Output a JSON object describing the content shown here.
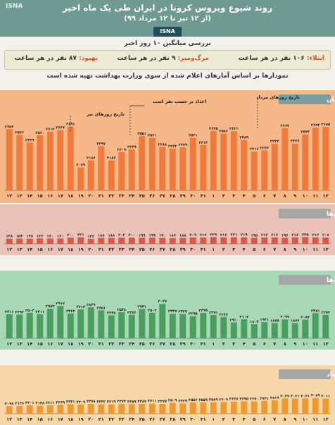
{
  "header": {
    "logo": "ISNA",
    "title": "روند شیوع ویروس کرونا در ایران طی یک ماه اخیر",
    "subtitle": "(از ۱۲ تیر تا ۱۲ مرداد ۹۹)",
    "badge": "ISNA"
  },
  "summary": {
    "heading": "بررسی میانگین ۱۰ روز اخیر",
    "items": [
      {
        "label": "ابتلاء:",
        "value": "۱۰۶ نفر در هر ساعت"
      },
      {
        "label": "مرگ‌ومیر:",
        "value": "۹ نفر در هر ساعت"
      },
      {
        "label": "بهبود:",
        "value": "۸۷ نفر در هر ساعت"
      }
    ]
  },
  "note": "نمودارها بر اساس آمارهای اعلام شده از سوی وزارت بهداشت تهیه شده است",
  "annotations": {
    "tir_dates": "تاریخ روزهای تیر",
    "mordad_dates": "تاریخ روزهای مرداد",
    "corrected": "اعداد بر حسب نفر است"
  },
  "colors": {
    "infections_bg": "#f6b889",
    "infections_bar": "#f07a3c",
    "infections_tag": "#7a9ea2",
    "deaths_bg": "#ebc2b8",
    "deaths_bar": "#d45a4a",
    "deaths_tag": "#a7a7a7",
    "recovered_bg": "#a9d8b6",
    "recovered_bar": "#4a9f5e",
    "recovered_tag": "#a7a7a7",
    "severe_bg": "#f7d7a8",
    "severe_bar": "#ef9a2e",
    "severe_tag": "#a7a7a7"
  },
  "chart_data": [
    {
      "type": "bar",
      "title": "مبتلایان",
      "categories": [
        "۱۲",
        "۱۳",
        "۱۴",
        "۱۵",
        "۱۶",
        "۱۷",
        "۱۸",
        "۱۹",
        "۲۰",
        "۲۱",
        "۲۲",
        "۲۳",
        "۲۴",
        "۲۵",
        "۲۶",
        "۲۷",
        "۲۸",
        "۲۹",
        "۳۰",
        "۳۱",
        "۱",
        "۲",
        "۳",
        "۴",
        "۵",
        "۶",
        "۷",
        "۸",
        "۹",
        "۱۰",
        "۱۱",
        "۱۲"
      ],
      "values": [
        2652,
        2566,
        2449,
        2560,
        2613,
        2637,
        2691,
        2079,
        2186,
        2397,
        2186,
        2309,
        2349,
        2551,
        2521,
        2388,
        2362,
        2379,
        2521,
        2414,
        2625,
        2586,
        2621,
        2489,
        2316,
        2333,
        2434,
        2667,
        2436,
        2574,
        2674,
        2685
      ],
      "value_labels": [
        "۲۶۵۲",
        "۲۵۶۶",
        "۲۴۴۹",
        "۲۵۶۰",
        "۲۶۱۳",
        "۲۶۳۷",
        "۲۶۹۱",
        "۲۰۷۹",
        "۲۱۸۶",
        "۲۳۹۷",
        "۲۱۸۶",
        "۲۳۰۹",
        "۲۳۴۹",
        "۲۵۵۱",
        "۲۵۲۱",
        "۲۳۸۸",
        "۲۳۶۲",
        "۲۳۷۹",
        "۲۵۲۱",
        "۲۴۱۴",
        "۲۶۲۵",
        "۲۵۸۶",
        "۲۶۲۱",
        "۲۴۸۹",
        "۲۳۱۶",
        "۲۳۳۳",
        "۲۴۳۴",
        "۲۶۶۷",
        "۲۴۳۶",
        "۲۵۷۴",
        "۲۶۷۴",
        "۲۶۸۵"
      ]
    },
    {
      "type": "bar",
      "title": "فوتی‌ها",
      "categories": [
        "۱۲",
        "۱۳",
        "۱۴",
        "۱۵",
        "۱۶",
        "۱۷",
        "۱۸",
        "۱۹",
        "۲۰",
        "۲۱",
        "۲۲",
        "۲۳",
        "۲۴",
        "۲۵",
        "۲۶",
        "۲۷",
        "۲۸",
        "۲۹",
        "۳۰",
        "۳۱",
        "۱",
        "۲",
        "۳",
        "۴",
        "۵",
        "۶",
        "۷",
        "۸",
        "۹",
        "۱۰",
        "۱۱",
        "۱۲"
      ],
      "values": [
        148,
        154,
        148,
        163,
        160,
        160,
        200,
        221,
        142,
        188,
        188,
        203,
        200,
        199,
        199,
        190,
        183,
        188,
        209,
        212,
        229,
        216,
        221,
        219,
        195,
        212,
        216,
        196,
        216,
        235,
        212,
        208
      ],
      "value_labels": [
        "۱۴۸",
        "۱۵۴",
        "۱۴۸",
        "۱۶۳",
        "۱۶۰",
        "۱۶۰",
        "۲۰۰",
        "۲۲۱",
        "۱۴۲",
        "۱۸۸",
        "۱۸۸",
        "۲۰۳",
        "۲۰۰",
        "۱۹۹",
        "۱۹۹",
        "۱۹۰",
        "۱۸۳",
        "۱۸۸",
        "۲۰۹",
        "۲۱۲",
        "۲۲۹",
        "۲۱۶",
        "۲۲۱",
        "۲۱۹",
        "۱۹۵",
        "۲۱۲",
        "۲۱۶",
        "۱۹۶",
        "۲۱۶",
        "۲۳۵",
        "۲۱۲",
        "۲۰۸"
      ]
    },
    {
      "type": "bar",
      "title": "بهبودیافته‌ها",
      "categories": [
        "۱۲",
        "۱۳",
        "۱۴",
        "۱۵",
        "۱۶",
        "۱۷",
        "۱۸",
        "۱۹",
        "۲۰",
        "۲۱",
        "۲۲",
        "۲۳",
        "۲۴",
        "۲۵",
        "۲۶",
        "۲۷",
        "۲۸",
        "۲۹",
        "۳۰",
        "۳۱",
        "۱",
        "۲",
        "۳",
        "۴",
        "۵",
        "۶",
        "۷",
        "۸",
        "۹",
        "۱۰",
        "۱۱",
        "۱۲"
      ],
      "values": [
        2411,
        2392,
        2503,
        2411,
        2753,
        2917,
        2463,
        2713,
        2839,
        2651,
        2348,
        2548,
        2376,
        2741,
        2502,
        3047,
        2447,
        2427,
        2295,
        2499,
        2371,
        2246,
        1910,
        2107,
        1804,
        1931,
        1875,
        2097,
        1876,
        2084,
        2481,
        2372
      ],
      "value_labels": [
        "۲۴۱۱",
        "۲۳۹۲",
        "۲۵۰۳",
        "۲۴۱۱",
        "۲۷۵۳",
        "۲۹۱۷",
        "۲۴۶۳",
        "۲۷۱۳",
        "۲۸۳۹",
        "۲۶۵۱",
        "۲۳۴۸",
        "۲۵۴۸",
        "۲۳۷۶",
        "۲۷۴۱",
        "۲۵۰۲",
        "۳۰۴۷",
        "۲۴۴۷",
        "۲۴۲۷",
        "۲۲۹۵",
        "۲۴۹۹",
        "۲۳۷۱",
        "۲۲۴۶",
        "۱۹۱۰",
        "۲۱۰۷",
        "۱۸۰۴",
        "۱۹۳۱",
        "۱۸۷۵",
        "۲۰۹۷",
        "۱۸۷۶",
        "۲۰۸۴",
        "۲۴۸۱",
        "۲۳۷۲"
      ]
    },
    {
      "type": "bar",
      "title": "بیماران با وضعیت حاد",
      "categories": [
        "۱۲",
        "۱۳",
        "۱۴",
        "۱۵",
        "۱۶",
        "۱۷",
        "۱۸",
        "۱۹",
        "۲۰",
        "۲۱",
        "۲۲",
        "۲۳",
        "۲۴",
        "۲۵",
        "۲۶",
        "۲۷",
        "۲۸",
        "۲۹",
        "۳۰",
        "۳۱",
        "۱",
        "۲",
        "۳",
        "۴",
        "۵",
        "۶",
        "۷",
        "۸",
        "۹",
        "۱۰",
        "۱۱",
        "۱۲"
      ],
      "values": [
        3097,
        3136,
        3201,
        3148,
        3211,
        3269,
        3341,
        3309,
        3378,
        3342,
        3319,
        3373,
        3359,
        3387,
        3411,
        3377,
        3509,
        3429,
        3556,
        3559,
        3589,
        3609,
        3667,
        3695,
        3670,
        3741,
        3819,
        4027,
        4021,
        4041,
        4089,
        4011
      ],
      "value_labels": [
        "۳۰۹۷",
        "۳۱۳۶",
        "۳۲۰۱",
        "۳۱۴۸",
        "۳۲۱۱",
        "۳۲۶۹",
        "۳۳۴۱",
        "۳۳۰۹",
        "۳۳۷۸",
        "۳۳۴۲",
        "۳۳۱۹",
        "۳۳۷۳",
        "۳۳۵۹",
        "۳۳۸۷",
        "۳۴۱۱",
        "۳۳۷۷",
        "۳۵۰۹",
        "۳۴۲۹",
        "۳۵۵۶",
        "۳۵۵۹",
        "۳۵۸۹",
        "۳۶۰۹",
        "۳۶۶۷",
        "۳۶۹۵",
        "۳۶۷۰",
        "۳۷۴۱",
        "۳۸۱۹",
        "۴۰۲۷",
        "۴۰۲۱",
        "۴۰۴۱",
        "۴۰۸۹",
        "۴۰۱۱"
      ]
    }
  ]
}
